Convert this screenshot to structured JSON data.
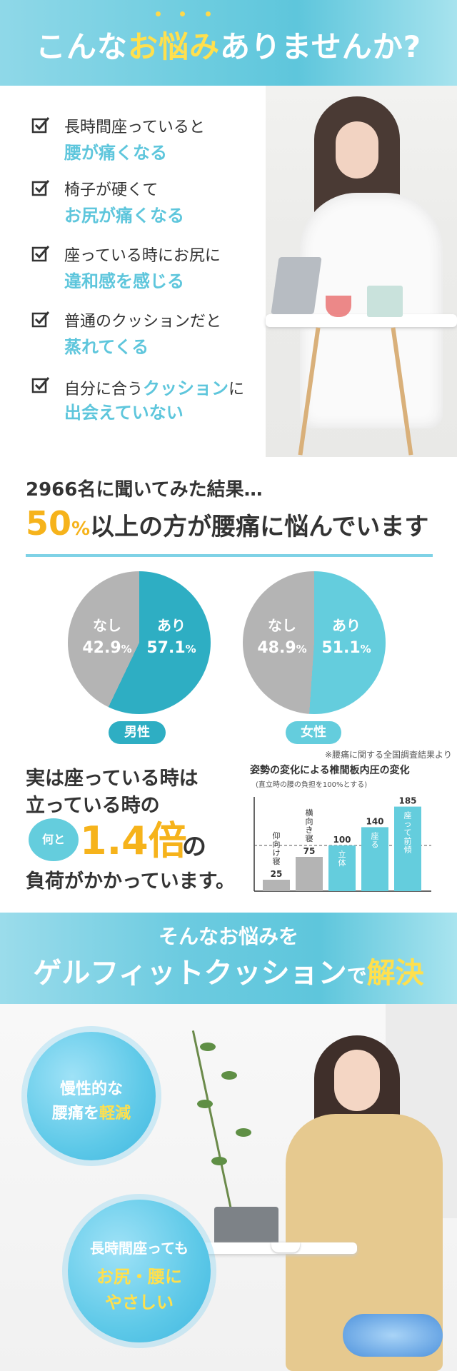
{
  "header": {
    "title_pre": "こんな",
    "title_highlight": "お悩み",
    "title_post": "ありませんか?"
  },
  "worries": [
    {
      "line1": "長時間座っていると",
      "line2": "腰が痛くなる"
    },
    {
      "line1": "椅子が硬くて",
      "line2": "お尻が痛くなる"
    },
    {
      "line1": "座っている時にお尻に",
      "line2": "違和感を感じる"
    },
    {
      "line1": "普通のクッションだと",
      "line2": "蒸れてくる"
    },
    {
      "line1_pre": "自分に合う",
      "line1_hl": "クッション",
      "line1_post": "に",
      "line2": "出会えていない"
    }
  ],
  "survey": {
    "line1": "2966名に聞いてみた結果…",
    "percent": "50",
    "percent_sign": "%",
    "line2_rest": "以上の方が腰痛に悩んでいます"
  },
  "pies": [
    {
      "gender": "男性",
      "no_label": "なし",
      "no_value": "42.9",
      "yes_label": "あり",
      "yes_value": "57.1",
      "unit": "%",
      "color": "#2eaec3"
    },
    {
      "gender": "女性",
      "no_label": "なし",
      "no_value": "48.9",
      "yes_label": "あり",
      "yes_value": "51.1",
      "unit": "%",
      "color": "#64cddd"
    }
  ],
  "pressure": {
    "source": "※腰痛に関する全国調査結果より",
    "line1": "実は座っている時は",
    "line2": "立っている時の",
    "badge": "何と",
    "times": "1.4倍",
    "times_suffix": "の",
    "line3": "負荷がかかっています。"
  },
  "chart_data": {
    "type": "bar",
    "title": "姿勢の変化による椎間板内圧の変化",
    "subtitle": "(直立時の腰の負担を100%とする)",
    "categories": [
      "仰向け寝",
      "横向き寝",
      "立体",
      "座る",
      "座って前傾"
    ],
    "values": [
      25,
      75,
      100,
      140,
      185
    ],
    "colors": [
      "#b4b4b4",
      "#b4b4b4",
      "#64cddd",
      "#64cddd",
      "#64cddd"
    ],
    "reference_line": 100,
    "ylim": [
      0,
      200
    ]
  },
  "solution": {
    "line1": "そんなお悩みを",
    "line2": "ゲルフィットクッション",
    "line2_de": "で",
    "line2_hl": "解決"
  },
  "bubbles": [
    {
      "lines": [
        {
          "text": "慢性的な"
        },
        {
          "text_pre": "腰痛を",
          "text_hl": "軽減"
        }
      ]
    },
    {
      "lines": [
        {
          "text": "長時間座っても"
        },
        {
          "text_hl": "お尻・腰に"
        },
        {
          "text_hl": "やさしい"
        }
      ]
    }
  ],
  "colors": {
    "accent": "#5ec6dc",
    "yellow": "#f6b31b",
    "highlight_yellow": "#ffe04d",
    "gray": "#b4b4b4"
  }
}
